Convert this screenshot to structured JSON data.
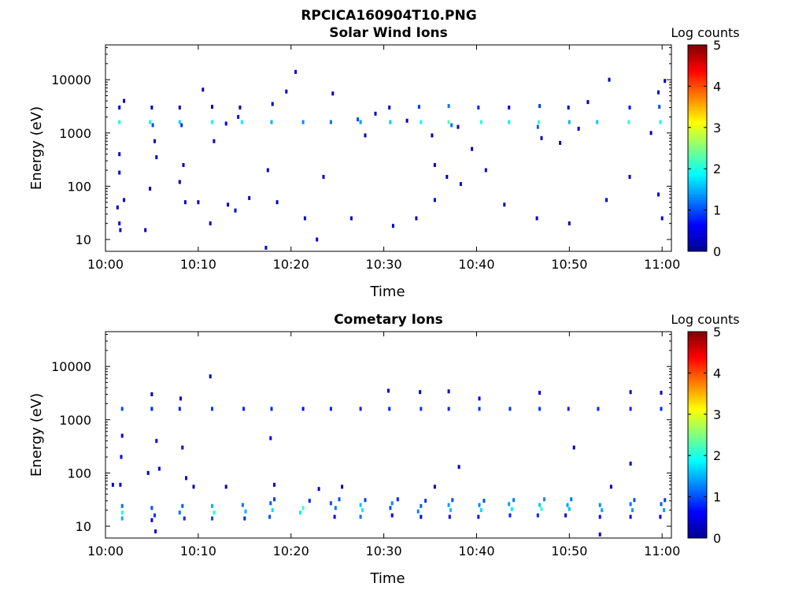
{
  "figure_title": "RPCICA160904T10.PNG",
  "colormap": [
    "#00008f",
    "#0000ff",
    "#0080ff",
    "#00ffff",
    "#80ff80",
    "#ffff00",
    "#ff8000",
    "#ff0000",
    "#800000"
  ],
  "chart_data": [
    {
      "type": "heatmap",
      "title": "Solar Wind Ions",
      "xlabel": "Time",
      "ylabel": "Energy (eV)",
      "yscale": "log",
      "xlim": [
        "10:00",
        "11:01"
      ],
      "ylim": [
        6,
        45000
      ],
      "x_ticks": [
        "10:00",
        "10:10",
        "10:20",
        "10:30",
        "10:40",
        "10:50",
        "11:00"
      ],
      "y_ticks": [
        "10",
        "100",
        "1000",
        "10000"
      ],
      "colorbar": {
        "label": "Log counts",
        "min": 0,
        "max": 5,
        "ticks": [
          "0",
          "1",
          "2",
          "3",
          "4",
          "5"
        ]
      },
      "cells": [
        [
          "10:01.5",
          1600,
          2.0
        ],
        [
          "10:01.5",
          3000,
          0.4
        ],
        [
          "10:02.0",
          4000,
          0.3
        ],
        [
          "10:01.5",
          400,
          0.3
        ],
        [
          "10:01.5",
          180,
          0.4
        ],
        [
          "10:01.3",
          40,
          0.3
        ],
        [
          "10:01.5",
          20,
          0.4
        ],
        [
          "10:01.6",
          15,
          0.3
        ],
        [
          "10:02.0",
          55,
          0.3
        ],
        [
          "10:04.8",
          1600,
          1.9
        ],
        [
          "10:05.1",
          1400,
          1.0
        ],
        [
          "10:05.0",
          3000,
          0.3
        ],
        [
          "10:04.8",
          90,
          0.3
        ],
        [
          "10:05.3",
          700,
          0.3
        ],
        [
          "10:04.3",
          15,
          0.3
        ],
        [
          "10:05.5",
          350,
          0.3
        ],
        [
          "10:08.0",
          1600,
          1.7
        ],
        [
          "10:08.2",
          1400,
          0.9
        ],
        [
          "10:08.0",
          3000,
          0.3
        ],
        [
          "10:08.4",
          250,
          0.3
        ],
        [
          "10:08.6",
          50,
          0.3
        ],
        [
          "10:08.0",
          120,
          0.2
        ],
        [
          "10:11.5",
          1600,
          1.9
        ],
        [
          "10:11.5",
          3100,
          0.3
        ],
        [
          "10:11.3",
          20,
          0.4
        ],
        [
          "10:11.7",
          700,
          0.3
        ],
        [
          "10:10.5",
          6500,
          0.3
        ],
        [
          "10:10.0",
          50,
          0.3
        ],
        [
          "10:14.7",
          1600,
          1.8
        ],
        [
          "10:14.3",
          2000,
          0.7
        ],
        [
          "10:14.5",
          3000,
          0.3
        ],
        [
          "10:13.0",
          1500,
          0.6
        ],
        [
          "10:13.2",
          45,
          0.3
        ],
        [
          "10:14.0",
          35,
          0.3
        ],
        [
          "10:15.5",
          60,
          0.3
        ],
        [
          "10:17.9",
          1600,
          1.5
        ],
        [
          "10:17.5",
          200,
          0.3
        ],
        [
          "10:17.3",
          7,
          0.6
        ],
        [
          "10:18.5",
          50,
          0.3
        ],
        [
          "10:18.0",
          3500,
          0.3
        ],
        [
          "10:19.5",
          6000,
          0.3
        ],
        [
          "10:20.5",
          14000,
          0.3
        ],
        [
          "10:21.3",
          1600,
          1.3
        ],
        [
          "10:21.5",
          25,
          0.5
        ],
        [
          "10:22.8",
          10,
          0.5
        ],
        [
          "10:24.3",
          1600,
          1.2
        ],
        [
          "10:24.5",
          5500,
          0.3
        ],
        [
          "10:23.5",
          150,
          0.3
        ],
        [
          "10:27.5",
          1600,
          1.4
        ],
        [
          "10:27.2",
          1800,
          1.0
        ],
        [
          "10:28.0",
          900,
          0.3
        ],
        [
          "10:29.1",
          2300,
          0.3
        ],
        [
          "10:26.5",
          25,
          0.3
        ],
        [
          "10:30.7",
          1600,
          1.6
        ],
        [
          "10:30.6",
          3000,
          0.3
        ],
        [
          "10:31.0",
          18,
          0.4
        ],
        [
          "10:32.5",
          1700,
          0.3
        ],
        [
          "10:33.5",
          25,
          0.3
        ],
        [
          "10:34.0",
          1600,
          1.9
        ],
        [
          "10:33.8",
          3100,
          0.9
        ],
        [
          "10:35.5",
          250,
          0.3
        ],
        [
          "10:35.2",
          900,
          0.3
        ],
        [
          "10:35.5",
          55,
          0.3
        ],
        [
          "10:37.0",
          1600,
          2.3
        ],
        [
          "10:37.3",
          1400,
          1.2
        ],
        [
          "10:37.0",
          3200,
          1.2
        ],
        [
          "10:38.0",
          1300,
          0.5
        ],
        [
          "10:36.8",
          150,
          0.3
        ],
        [
          "10:38.3",
          110,
          0.3
        ],
        [
          "10:40.5",
          1600,
          2.0
        ],
        [
          "10:40.2",
          3000,
          0.8
        ],
        [
          "10:39.5",
          500,
          0.3
        ],
        [
          "10:41.0",
          200,
          0.3
        ],
        [
          "10:43.5",
          1600,
          1.8
        ],
        [
          "10:43.5",
          3000,
          0.6
        ],
        [
          "10:43.0",
          45,
          0.3
        ],
        [
          "10:46.7",
          1600,
          2.1
        ],
        [
          "10:46.8",
          3200,
          0.9
        ],
        [
          "10:46.6",
          1300,
          1.1
        ],
        [
          "10:47.0",
          800,
          0.3
        ],
        [
          "10:46.5",
          25,
          0.4
        ],
        [
          "10:49.0",
          650,
          0.3
        ],
        [
          "10:50.0",
          1600,
          1.5
        ],
        [
          "10:49.9",
          3000,
          0.3
        ],
        [
          "10:51.0",
          1200,
          0.3
        ],
        [
          "10:52.0",
          3800,
          0.3
        ],
        [
          "10:50.0",
          20,
          0.3
        ],
        [
          "10:53.0",
          1600,
          1.6
        ],
        [
          "10:54.3",
          10000,
          0.3
        ],
        [
          "10:54.0",
          55,
          0.3
        ],
        [
          "10:56.4",
          1600,
          2.1
        ],
        [
          "10:56.5",
          3000,
          0.7
        ],
        [
          "10:56.5",
          150,
          0.3
        ],
        [
          "10:59.8",
          1600,
          1.9
        ],
        [
          "10:59.7",
          3100,
          1.0
        ],
        [
          "10:59.6",
          5800,
          0.3
        ],
        [
          "11:00.3",
          9500,
          0.3
        ],
        [
          "10:58.8",
          1000,
          0.3
        ],
        [
          "10:59.6",
          70,
          0.3
        ],
        [
          "11:00.0",
          25,
          0.4
        ]
      ]
    },
    {
      "type": "heatmap",
      "title": "Cometary Ions",
      "xlabel": "Time",
      "ylabel": "Energy (eV)",
      "yscale": "log",
      "xlim": [
        "10:00",
        "11:01"
      ],
      "ylim": [
        6,
        45000
      ],
      "x_ticks": [
        "10:00",
        "10:10",
        "10:20",
        "10:30",
        "10:40",
        "10:50",
        "11:00"
      ],
      "y_ticks": [
        "10",
        "100",
        "1000",
        "10000"
      ],
      "colorbar": {
        "label": "Log counts",
        "min": 0,
        "max": 5,
        "ticks": [
          "0",
          "1",
          "2",
          "3",
          "4",
          "5"
        ]
      },
      "cells": [
        [
          "10:01.8",
          24,
          1.2
        ],
        [
          "10:01.8",
          18,
          2.0
        ],
        [
          "10:01.8",
          14,
          1.5
        ],
        [
          "10:01.8",
          1600,
          1.0
        ],
        [
          "10:01.8",
          500,
          0.6
        ],
        [
          "10:01.7",
          200,
          0.5
        ],
        [
          "10:01.6",
          60,
          0.5
        ],
        [
          "10:00.8",
          60,
          0.3
        ],
        [
          "10:05.0",
          22,
          1.0
        ],
        [
          "10:05.3",
          16,
          0.9
        ],
        [
          "10:05.0",
          13,
          0.6
        ],
        [
          "10:05.4",
          8,
          0.3
        ],
        [
          "10:05.0",
          1600,
          0.8
        ],
        [
          "10:05.0",
          3000,
          0.3
        ],
        [
          "10:05.5",
          400,
          0.4
        ],
        [
          "10:05.8",
          120,
          0.4
        ],
        [
          "10:04.6",
          100,
          0.4
        ],
        [
          "10:08.3",
          24,
          1.1
        ],
        [
          "10:08.0",
          18,
          1.2
        ],
        [
          "10:08.5",
          14,
          0.8
        ],
        [
          "10:08.0",
          1600,
          0.8
        ],
        [
          "10:08.1",
          2500,
          0.4
        ],
        [
          "10:08.3",
          300,
          0.5
        ],
        [
          "10:08.7",
          80,
          0.4
        ],
        [
          "10:09.5",
          55,
          0.3
        ],
        [
          "10:11.5",
          24,
          1.5
        ],
        [
          "10:11.7",
          18,
          2.0
        ],
        [
          "10:11.5",
          14,
          1.0
        ],
        [
          "10:11.5",
          1600,
          0.9
        ],
        [
          "10:11.3",
          6500,
          0.3
        ],
        [
          "10:14.8",
          25,
          1.2
        ],
        [
          "10:15.1",
          19,
          1.5
        ],
        [
          "10:15.0",
          14,
          0.8
        ],
        [
          "10:14.9",
          1600,
          0.8
        ],
        [
          "10:13.0",
          55,
          0.3
        ],
        [
          "10:17.8",
          27,
          1.1
        ],
        [
          "10:18.0",
          20,
          1.7
        ],
        [
          "10:17.7",
          15,
          1.0
        ],
        [
          "10:18.2",
          32,
          0.9
        ],
        [
          "10:17.9",
          1600,
          0.8
        ],
        [
          "10:17.8",
          450,
          0.5
        ],
        [
          "10:18.2",
          60,
          0.3
        ],
        [
          "10:21.3",
          22,
          2.2
        ],
        [
          "10:21.0",
          18,
          1.8
        ],
        [
          "10:22.0",
          30,
          0.8
        ],
        [
          "10:21.3",
          1600,
          0.7
        ],
        [
          "10:23.0",
          50,
          0.3
        ],
        [
          "10:24.3",
          27,
          1.0
        ],
        [
          "10:24.8",
          22,
          1.2
        ],
        [
          "10:25.2",
          32,
          1.0
        ],
        [
          "10:24.7",
          15,
          0.6
        ],
        [
          "10:24.3",
          1600,
          0.8
        ],
        [
          "10:25.5",
          55,
          0.3
        ],
        [
          "10:27.5",
          25,
          1.6
        ],
        [
          "10:27.7",
          20,
          1.8
        ],
        [
          "10:27.5",
          15,
          1.2
        ],
        [
          "10:28.0",
          31,
          0.9
        ],
        [
          "10:27.5",
          1600,
          0.8
        ],
        [
          "10:30.7",
          22,
          1.0
        ],
        [
          "10:30.9",
          27,
          1.3
        ],
        [
          "10:31.5",
          32,
          0.8
        ],
        [
          "10:30.9",
          16,
          0.6
        ],
        [
          "10:30.6",
          1600,
          0.8
        ],
        [
          "10:30.5",
          3500,
          0.3
        ],
        [
          "10:34.0",
          24,
          1.1
        ],
        [
          "10:33.7",
          19,
          1.3
        ],
        [
          "10:34.5",
          30,
          0.9
        ],
        [
          "10:34.0",
          15,
          0.6
        ],
        [
          "10:34.0",
          1600,
          0.9
        ],
        [
          "10:33.9",
          3300,
          0.4
        ],
        [
          "10:35.5",
          55,
          0.3
        ],
        [
          "10:37.0",
          25,
          1.4
        ],
        [
          "10:37.2",
          20,
          1.6
        ],
        [
          "10:37.4",
          31,
          1.0
        ],
        [
          "10:37.1",
          15,
          0.7
        ],
        [
          "10:37.0",
          1600,
          0.8
        ],
        [
          "10:37.0",
          3400,
          0.4
        ],
        [
          "10:38.1",
          130,
          0.3
        ],
        [
          "10:40.3",
          25,
          1.3
        ],
        [
          "10:40.5",
          20,
          1.7
        ],
        [
          "10:40.8",
          30,
          1.0
        ],
        [
          "10:40.2",
          15,
          0.7
        ],
        [
          "10:40.3",
          1600,
          0.9
        ],
        [
          "10:40.3",
          2500,
          0.4
        ],
        [
          "10:43.5",
          26,
          1.4
        ],
        [
          "10:43.8",
          21,
          1.8
        ],
        [
          "10:44.0",
          31,
          1.2
        ],
        [
          "10:43.6",
          16,
          0.8
        ],
        [
          "10:43.6",
          1600,
          0.9
        ],
        [
          "10:46.8",
          25,
          1.6
        ],
        [
          "10:47.0",
          21,
          2.1
        ],
        [
          "10:47.3",
          32,
          1.3
        ],
        [
          "10:46.6",
          16,
          0.8
        ],
        [
          "10:46.8",
          1600,
          0.9
        ],
        [
          "10:46.8",
          3200,
          0.4
        ],
        [
          "10:49.8",
          25,
          1.4
        ],
        [
          "10:50.0",
          21,
          1.6
        ],
        [
          "10:50.2",
          32,
          1.2
        ],
        [
          "10:49.6",
          16,
          0.6
        ],
        [
          "10:49.9",
          1600,
          0.8
        ],
        [
          "10:50.5",
          300,
          0.3
        ],
        [
          "10:53.3",
          25,
          1.3
        ],
        [
          "10:53.5",
          20,
          1.5
        ],
        [
          "10:53.3",
          15,
          0.7
        ],
        [
          "10:53.1",
          1600,
          0.8
        ],
        [
          "10:53.3",
          7,
          0.4
        ],
        [
          "10:54.5",
          55,
          0.3
        ],
        [
          "10:56.6",
          26,
          1.2
        ],
        [
          "10:56.8",
          20,
          1.4
        ],
        [
          "10:57.0",
          31,
          1.0
        ],
        [
          "10:56.6",
          15,
          0.6
        ],
        [
          "10:56.6",
          1600,
          0.8
        ],
        [
          "10:56.6",
          3300,
          0.3
        ],
        [
          "10:56.6",
          150,
          0.3
        ],
        [
          "10:59.9",
          26,
          1.1
        ],
        [
          "11:00.2",
          20,
          1.4
        ],
        [
          "11:00.3",
          31,
          0.9
        ],
        [
          "10:59.8",
          15,
          0.6
        ],
        [
          "10:59.9",
          1600,
          0.8
        ],
        [
          "10:59.9",
          3200,
          0.3
        ]
      ]
    }
  ]
}
